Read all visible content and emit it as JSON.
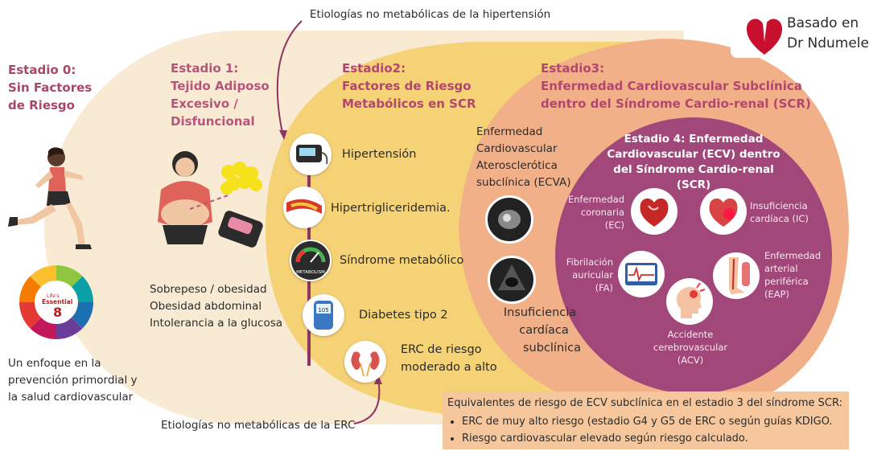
{
  "top_annotation": "Etiologías no metabólicas de la hipertensión",
  "bottom_annotation": "Etiologías no metabólicas de la ERC",
  "badge": {
    "line1": "Basado en",
    "line2": "Dr Ndumele"
  },
  "stage0": {
    "title_lines": [
      "Estadio 0:",
      "Sin Factores",
      "de Riesgo"
    ],
    "essential_label": [
      "Life's",
      "Essential",
      "8"
    ],
    "caption_lines": [
      "Un enfoque en la",
      "prevención primordial y",
      "la salud cardiovascular"
    ]
  },
  "stage1": {
    "title_lines": [
      "Estadio 1:",
      "Tejido Adiposo",
      "Excesivo /",
      "Disfuncional"
    ],
    "items": [
      "Sobrepeso / obesidad",
      "Obesidad abdominal",
      "Intolerancia a la glucosa"
    ]
  },
  "stage2": {
    "title_lines": [
      "Estadio2:",
      "Factores de Riesgo",
      "Metabólicos en SCR"
    ],
    "items": [
      "Hipertensión",
      "Hipertrigliceridemia.",
      "Síndrome metabólico",
      "Diabetes tipo 2",
      "ERC de riesgo",
      "moderado a alto"
    ],
    "metabolism_label": "METABOLISM",
    "glucose_value": "105"
  },
  "stage3": {
    "title_lines": [
      "Estadio3:",
      "Enfermedad Cardiovascular Subclínica",
      "dentro del Síndrome Cardio-renal (SCR)"
    ],
    "ecva_lines": [
      "Enfermedad",
      "Cardiovascular",
      "Aterosclerótica",
      "subclínica (ECVA)"
    ],
    "ic_lines": [
      "Insuficiencia",
      "cardíaca",
      "subclínica"
    ]
  },
  "stage4": {
    "title_lines": [
      "Estadio 4: Enfermedad",
      "Cardiovascular (ECV) dentro",
      "del Síndrome Cardio-renal (SCR)"
    ],
    "conditions": {
      "ec": [
        "Enfermedad",
        "coronaria",
        "(EC)"
      ],
      "ic": [
        "Insuficiencia",
        "cardíaca (IC)"
      ],
      "fa": [
        "Fibrilación",
        "auricular",
        "(FA)"
      ],
      "eap": [
        "Enfermedad",
        "arterial",
        "periférica",
        "(EAP)"
      ],
      "acv": [
        "Accidente",
        "cerebrovascular",
        "(ACV)"
      ]
    }
  },
  "equivalents": {
    "heading": "Equivalentes de riesgo de ECV subclínica en el estadio 3 del síndrome SCR:",
    "items": [
      "ERC de muy alto riesgo (estadio G4 y G5 de ERC o según guías KDIGO.",
      "Riesgo cardiovascular elevado según  riesgo calculado."
    ]
  },
  "colors": {
    "stage1_bg": "#f8ead3",
    "stage2_bg": "#f6d277",
    "stage3_bg": "#f2b089",
    "stage4_bg": "#a1477a",
    "accent": "#8e3562"
  }
}
